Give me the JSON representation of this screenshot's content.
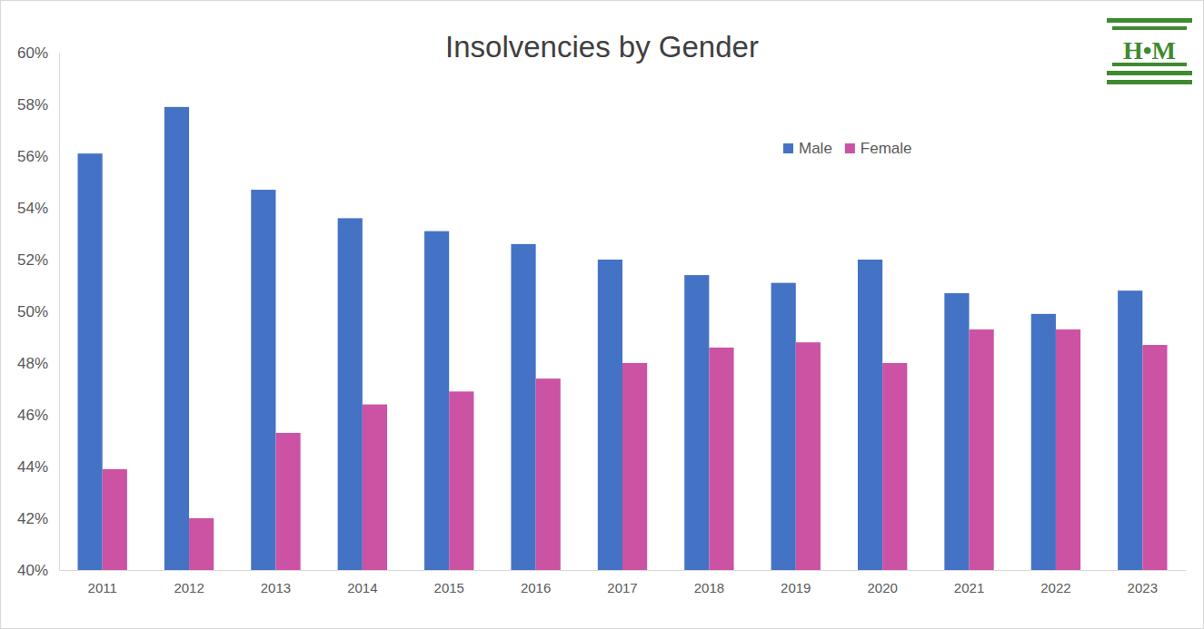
{
  "chart_data": {
    "type": "bar",
    "title": "Insolvencies by Gender",
    "annotations": [
      "H•M"
    ],
    "categories": [
      "2011",
      "2012",
      "2013",
      "2014",
      "2015",
      "2016",
      "2017",
      "2018",
      "2019",
      "2020",
      "2021",
      "2022",
      "2023"
    ],
    "series": [
      {
        "name": "Male",
        "color": "#4472c4",
        "values": [
          56.1,
          57.9,
          54.7,
          53.6,
          53.1,
          52.6,
          52.0,
          51.4,
          51.1,
          52.0,
          50.7,
          49.9,
          50.8
        ]
      },
      {
        "name": "Female",
        "color": "#cc52a4",
        "values": [
          43.9,
          42.0,
          45.3,
          46.4,
          46.9,
          47.4,
          48.0,
          48.6,
          48.8,
          48.0,
          49.3,
          49.3,
          48.7
        ]
      }
    ],
    "ylim": [
      40,
      60
    ],
    "yticks": [
      {
        "value": 40,
        "label": "40%"
      },
      {
        "value": 42,
        "label": "42%"
      },
      {
        "value": 44,
        "label": "44%"
      },
      {
        "value": 46,
        "label": "46%"
      },
      {
        "value": 48,
        "label": "48%"
      },
      {
        "value": 50,
        "label": "50%"
      },
      {
        "value": 52,
        "label": "52%"
      },
      {
        "value": 54,
        "label": "54%"
      },
      {
        "value": 56,
        "label": "56%"
      },
      {
        "value": 58,
        "label": "58%"
      },
      {
        "value": 60,
        "label": "60%"
      }
    ],
    "grid": false,
    "legend": "top-right"
  }
}
